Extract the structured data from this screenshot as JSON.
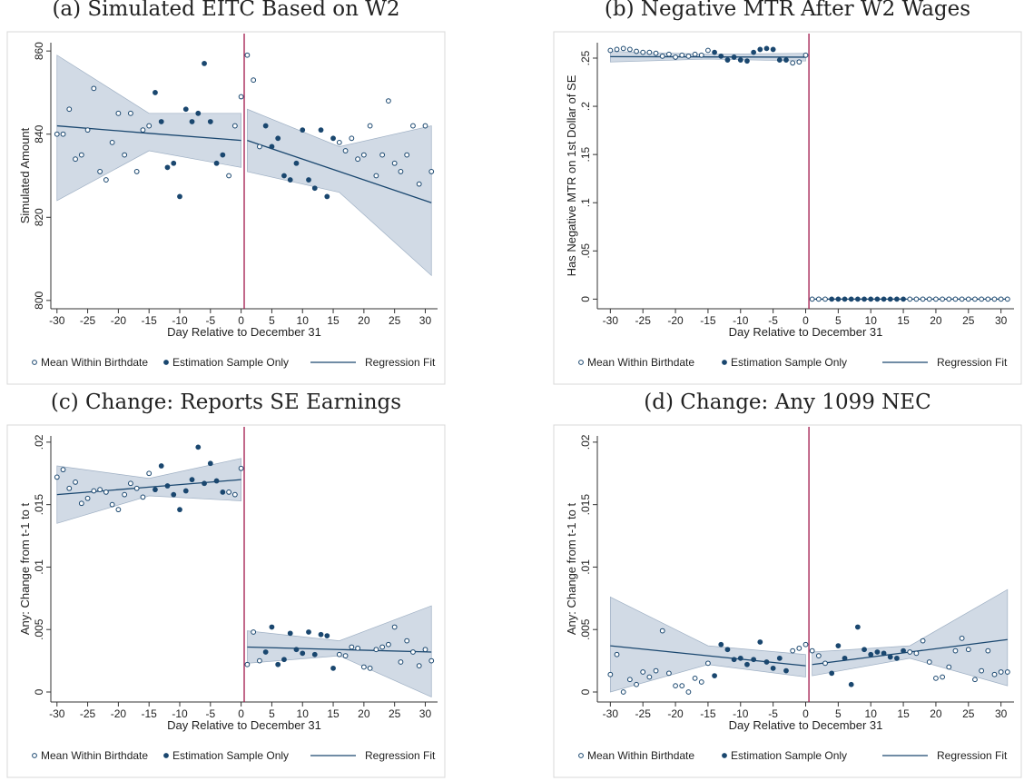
{
  "chart_data": [
    {
      "type": "scatter",
      "title": "(a) Simulated EITC Based on W2",
      "xlabel": "Day Relative to December 31",
      "ylabel": "Simulated Amount",
      "xlim": [
        -31,
        32
      ],
      "ylim": [
        798,
        862
      ],
      "xticks": [
        -30,
        -25,
        -20,
        -15,
        -10,
        -5,
        0,
        5,
        10,
        15,
        20,
        25,
        30
      ],
      "yticks": [
        800,
        820,
        840,
        860
      ],
      "cutoff": 0.5,
      "cutoff_color": "#a0174a",
      "band_color": "#c9d4e0",
      "series": [
        {
          "name": "Mean Within Birthdate",
          "marker": "hollow",
          "color": "#1a476f",
          "x": [
            -30,
            -29,
            -28,
            -27,
            -26,
            -25,
            -24,
            -23,
            -22,
            -21,
            -20,
            -19,
            -18,
            -17,
            -16,
            -15,
            -2,
            -1,
            0,
            1,
            2,
            3,
            16,
            17,
            18,
            19,
            20,
            21,
            22,
            23,
            24,
            25,
            26,
            27,
            28,
            29,
            30,
            31
          ],
          "values": [
            840,
            840,
            846,
            834,
            835,
            841,
            851,
            831,
            829,
            838,
            845,
            835,
            845,
            831,
            841,
            842,
            830,
            842,
            849,
            859,
            853,
            837,
            838,
            836,
            839,
            834,
            835,
            842,
            830,
            835,
            848,
            833,
            831,
            835,
            842,
            828,
            842,
            831
          ]
        },
        {
          "name": "Estimation Sample Only",
          "marker": "filled",
          "color": "#1a476f",
          "x": [
            -14,
            -13,
            -12,
            -11,
            -10,
            -9,
            -8,
            -7,
            -6,
            -5,
            -4,
            -3,
            4,
            5,
            6,
            7,
            8,
            9,
            10,
            11,
            12,
            13,
            14,
            15
          ],
          "values": [
            850,
            843,
            832,
            833,
            825,
            846,
            843,
            845,
            857,
            843,
            833,
            835,
            842,
            837,
            839,
            830,
            829,
            833,
            841,
            829,
            827,
            841,
            825,
            839
          ]
        },
        {
          "name": "Regression Fit",
          "marker": "line",
          "color": "#1a476f",
          "segments": [
            {
              "x": [
                -30,
                -15,
                0
              ],
              "values": [
                842,
                840.2,
                838.5
              ],
              "lower": [
                824,
                836,
                832
              ],
              "upper": [
                859,
                845,
                845
              ]
            },
            {
              "x": [
                1,
                16,
                31
              ],
              "values": [
                838.5,
                831,
                823.5
              ],
              "lower": [
                831,
                826,
                806
              ],
              "upper": [
                846,
                837,
                842
              ]
            }
          ]
        }
      ]
    },
    {
      "type": "scatter",
      "title": "(b) Negative MTR After W2 Wages",
      "xlabel": "Day Relative to December 31",
      "ylabel": "Has Negative MTR on 1st Dollar of SE",
      "xlim": [
        -32,
        32
      ],
      "ylim": [
        -0.01,
        0.266
      ],
      "xticks": [
        -30,
        -25,
        -20,
        -15,
        -10,
        -5,
        0,
        5,
        10,
        15,
        20,
        25,
        30
      ],
      "yticks": [
        0,
        {
          "value": 0.05,
          "label": ".05"
        },
        {
          "value": 0.1,
          "label": ".1"
        },
        {
          "value": 0.15,
          "label": ".15"
        },
        {
          "value": 0.2,
          "label": ".2"
        },
        {
          "value": 0.25,
          "label": ".25"
        }
      ],
      "cutoff": 0.5,
      "cutoff_color": "#a0174a",
      "band_color": "#c9d4e0",
      "series": [
        {
          "name": "Mean Within Birthdate",
          "marker": "hollow",
          "color": "#1a476f",
          "x": [
            -30,
            -29,
            -28,
            -27,
            -26,
            -25,
            -24,
            -23,
            -22,
            -21,
            -20,
            -19,
            -18,
            -17,
            -16,
            -15,
            -2,
            -1,
            0,
            1,
            2,
            3,
            16,
            17,
            18,
            19,
            20,
            21,
            22,
            23,
            24,
            25,
            26,
            27,
            28,
            29,
            30,
            31
          ],
          "values": [
            0.258,
            0.259,
            0.26,
            0.259,
            0.257,
            0.256,
            0.256,
            0.255,
            0.252,
            0.254,
            0.251,
            0.253,
            0.252,
            0.254,
            0.253,
            0.258,
            0.245,
            0.246,
            0.253,
            0,
            0,
            0,
            0,
            0,
            0,
            0,
            0,
            0,
            0,
            0,
            0,
            0,
            0,
            0,
            0,
            0,
            0,
            0
          ]
        },
        {
          "name": "Estimation Sample Only",
          "marker": "filled",
          "color": "#1a476f",
          "x": [
            -14,
            -13,
            -12,
            -11,
            -10,
            -9,
            -8,
            -7,
            -6,
            -5,
            -4,
            -3,
            4,
            5,
            6,
            7,
            8,
            9,
            10,
            11,
            12,
            13,
            14,
            15
          ],
          "values": [
            0.256,
            0.252,
            0.248,
            0.251,
            0.248,
            0.247,
            0.256,
            0.259,
            0.26,
            0.259,
            0.248,
            0.248,
            0,
            0,
            0,
            0,
            0,
            0,
            0,
            0,
            0,
            0,
            0,
            0
          ]
        },
        {
          "name": "Regression Fit",
          "marker": "line",
          "color": "#1a476f",
          "segments": [
            {
              "x": [
                -30,
                -15,
                0
              ],
              "values": [
                0.2515,
                0.2512,
                0.251
              ],
              "lower": [
                0.246,
                0.249,
                0.247
              ],
              "upper": [
                0.257,
                0.254,
                0.255
              ]
            },
            {
              "x": [
                1,
                16,
                31
              ],
              "values": [
                0,
                0,
                0
              ],
              "lower": [
                0,
                0,
                0
              ],
              "upper": [
                0,
                0,
                0
              ]
            }
          ]
        }
      ]
    },
    {
      "type": "scatter",
      "title": "(c) Change: Reports SE Earnings",
      "xlabel": "Day Relative to December 31",
      "ylabel": "Any: Change from t-1 to t",
      "xlim": [
        -31,
        32
      ],
      "ylim": [
        -0.0008,
        0.0205
      ],
      "xticks": [
        -30,
        -25,
        -20,
        -15,
        -10,
        -5,
        0,
        5,
        10,
        15,
        20,
        25,
        30
      ],
      "yticks": [
        0,
        {
          "value": 0.005,
          "label": ".005"
        },
        {
          "value": 0.01,
          "label": ".01"
        },
        {
          "value": 0.015,
          "label": ".015"
        },
        {
          "value": 0.02,
          "label": ".02"
        }
      ],
      "cutoff": 0.5,
      "cutoff_color": "#a0174a",
      "band_color": "#c9d4e0",
      "series": [
        {
          "name": "Mean Within Birthdate",
          "marker": "hollow",
          "color": "#1a476f",
          "x": [
            -30,
            -29,
            -28,
            -27,
            -26,
            -25,
            -24,
            -23,
            -22,
            -21,
            -20,
            -19,
            -18,
            -17,
            -16,
            -15,
            -2,
            -1,
            0,
            1,
            2,
            3,
            16,
            17,
            18,
            19,
            20,
            21,
            22,
            23,
            24,
            25,
            26,
            27,
            28,
            29,
            30,
            31
          ],
          "values": [
            0.0172,
            0.0178,
            0.0163,
            0.0168,
            0.0151,
            0.0155,
            0.0161,
            0.0162,
            0.016,
            0.015,
            0.0146,
            0.0158,
            0.0167,
            0.0163,
            0.0156,
            0.0175,
            0.016,
            0.0158,
            0.0179,
            0.0022,
            0.0048,
            0.0025,
            0.003,
            0.0029,
            0.0036,
            0.0035,
            0.002,
            0.0019,
            0.0034,
            0.0036,
            0.0038,
            0.0052,
            0.0024,
            0.0041,
            0.0032,
            0.0021,
            0.0034,
            0.0025
          ]
        },
        {
          "name": "Estimation Sample Only",
          "marker": "filled",
          "color": "#1a476f",
          "x": [
            -14,
            -13,
            -12,
            -11,
            -10,
            -9,
            -8,
            -7,
            -6,
            -5,
            -4,
            -3,
            4,
            5,
            6,
            7,
            8,
            9,
            10,
            11,
            12,
            13,
            14,
            15
          ],
          "values": [
            0.0162,
            0.0181,
            0.0165,
            0.0158,
            0.0146,
            0.0161,
            0.017,
            0.0196,
            0.0167,
            0.0183,
            0.0169,
            0.016,
            0.0032,
            0.0052,
            0.0022,
            0.0026,
            0.0047,
            0.0034,
            0.0031,
            0.0048,
            0.003,
            0.0046,
            0.0045,
            0.0019
          ]
        },
        {
          "name": "Regression Fit",
          "marker": "line",
          "color": "#1a476f",
          "segments": [
            {
              "x": [
                -30,
                -15,
                0
              ],
              "values": [
                0.0158,
                0.0164,
                0.017
              ],
              "lower": [
                0.0135,
                0.0157,
                0.0153
              ],
              "upper": [
                0.0181,
                0.0171,
                0.0187
              ]
            },
            {
              "x": [
                1,
                16,
                31
              ],
              "values": [
                0.0036,
                0.0034,
                0.0032
              ],
              "lower": [
                0.0023,
                0.0029,
                -0.0004
              ],
              "upper": [
                0.0049,
                0.0041,
                0.0069
              ]
            }
          ]
        }
      ]
    },
    {
      "type": "scatter",
      "title": "(d) Change: Any 1099 NEC",
      "xlabel": "Day Relative to December 31",
      "ylabel": "Any: Change from t-1 to t",
      "xlim": [
        -32,
        32
      ],
      "ylim": [
        -0.0008,
        0.0205
      ],
      "xticks": [
        -30,
        -25,
        -20,
        -15,
        -10,
        -5,
        0,
        5,
        10,
        15,
        20,
        25,
        30
      ],
      "yticks": [
        0,
        {
          "value": 0.005,
          "label": ".005"
        },
        {
          "value": 0.01,
          "label": ".01"
        },
        {
          "value": 0.015,
          "label": ".015"
        },
        {
          "value": 0.02,
          "label": ".02"
        }
      ],
      "cutoff": 0.5,
      "cutoff_color": "#a0174a",
      "band_color": "#c9d4e0",
      "series": [
        {
          "name": "Mean Within Birthdate",
          "marker": "hollow",
          "color": "#1a476f",
          "x": [
            -30,
            -29,
            -28,
            -27,
            -26,
            -25,
            -24,
            -23,
            -22,
            -21,
            -20,
            -19,
            -18,
            -17,
            -16,
            -15,
            -2,
            -1,
            0,
            1,
            2,
            3,
            16,
            17,
            18,
            19,
            20,
            21,
            22,
            23,
            24,
            25,
            26,
            27,
            28,
            29,
            30,
            31
          ],
          "values": [
            0.0014,
            0.003,
            0,
            0.001,
            0.0006,
            0.0016,
            0.0012,
            0.0017,
            0.0049,
            0.0015,
            0.0005,
            0.0005,
            0,
            0.0011,
            0.0008,
            0.0023,
            0.0033,
            0.0035,
            0.0038,
            0.0033,
            0.0029,
            0.0023,
            0.0032,
            0.0031,
            0.0041,
            0.0024,
            0.0011,
            0.0012,
            0.002,
            0.0033,
            0.0043,
            0.0034,
            0.001,
            0.0017,
            0.0033,
            0.0014,
            0.0016,
            0.0016
          ]
        },
        {
          "name": "Estimation Sample Only",
          "marker": "filled",
          "color": "#1a476f",
          "x": [
            -14,
            -13,
            -12,
            -11,
            -10,
            -9,
            -8,
            -7,
            -6,
            -5,
            -4,
            -3,
            4,
            5,
            6,
            7,
            8,
            9,
            10,
            11,
            12,
            13,
            14,
            15
          ],
          "values": [
            0.0013,
            0.0038,
            0.0034,
            0.0026,
            0.0027,
            0.0022,
            0.0026,
            0.004,
            0.0024,
            0.0019,
            0.0027,
            0.0017,
            0.0015,
            0.0037,
            0.0027,
            0.0006,
            0.0052,
            0.0034,
            0.003,
            0.0032,
            0.0031,
            0.0028,
            0.0027,
            0.0033
          ]
        },
        {
          "name": "Regression Fit",
          "marker": "line",
          "color": "#1a476f",
          "segments": [
            {
              "x": [
                -30,
                -15,
                0
              ],
              "values": [
                0.0037,
                0.0029,
                0.0021
              ],
              "lower": [
                0,
                0.0022,
                0.0012
              ],
              "upper": [
                0.0076,
                0.0037,
                0.003
              ]
            },
            {
              "x": [
                1,
                16,
                31
              ],
              "values": [
                0.0022,
                0.0032,
                0.0042
              ],
              "lower": [
                0.0013,
                0.0027,
                0.0005
              ],
              "upper": [
                0.0032,
                0.0037,
                0.0082
              ]
            }
          ]
        }
      ]
    }
  ]
}
